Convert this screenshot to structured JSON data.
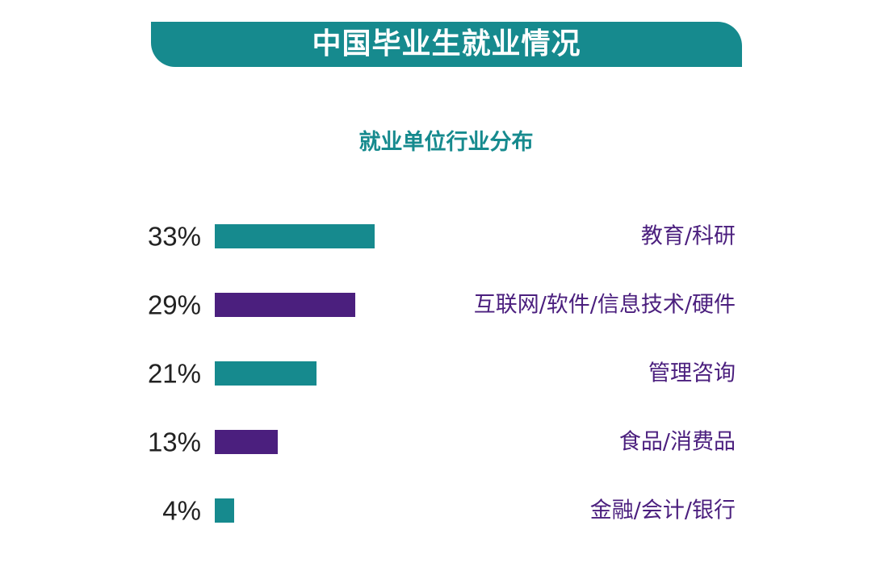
{
  "header": {
    "title": "中国毕业生就业情况",
    "banner_color": "#168a8e"
  },
  "chart_data": {
    "type": "bar",
    "orientation": "horizontal",
    "title": "就业单位行业分布",
    "unit": "%",
    "categories": [
      "教育/科研",
      "互联网/软件/信息技术/硬件",
      "管理咨询",
      "食品/消费品",
      "金融/会计/银行"
    ],
    "values": [
      33,
      29,
      21,
      13,
      4
    ],
    "value_labels": [
      "33%",
      "29%",
      "21%",
      "13%",
      "4%"
    ],
    "bar_colors": [
      "#168a8e",
      "#4b1f7e",
      "#168a8e",
      "#4b1f7e",
      "#168a8e"
    ],
    "label_color": "#4b1f7e",
    "value_label_color": "#222222",
    "grid": false,
    "legend": "none"
  }
}
